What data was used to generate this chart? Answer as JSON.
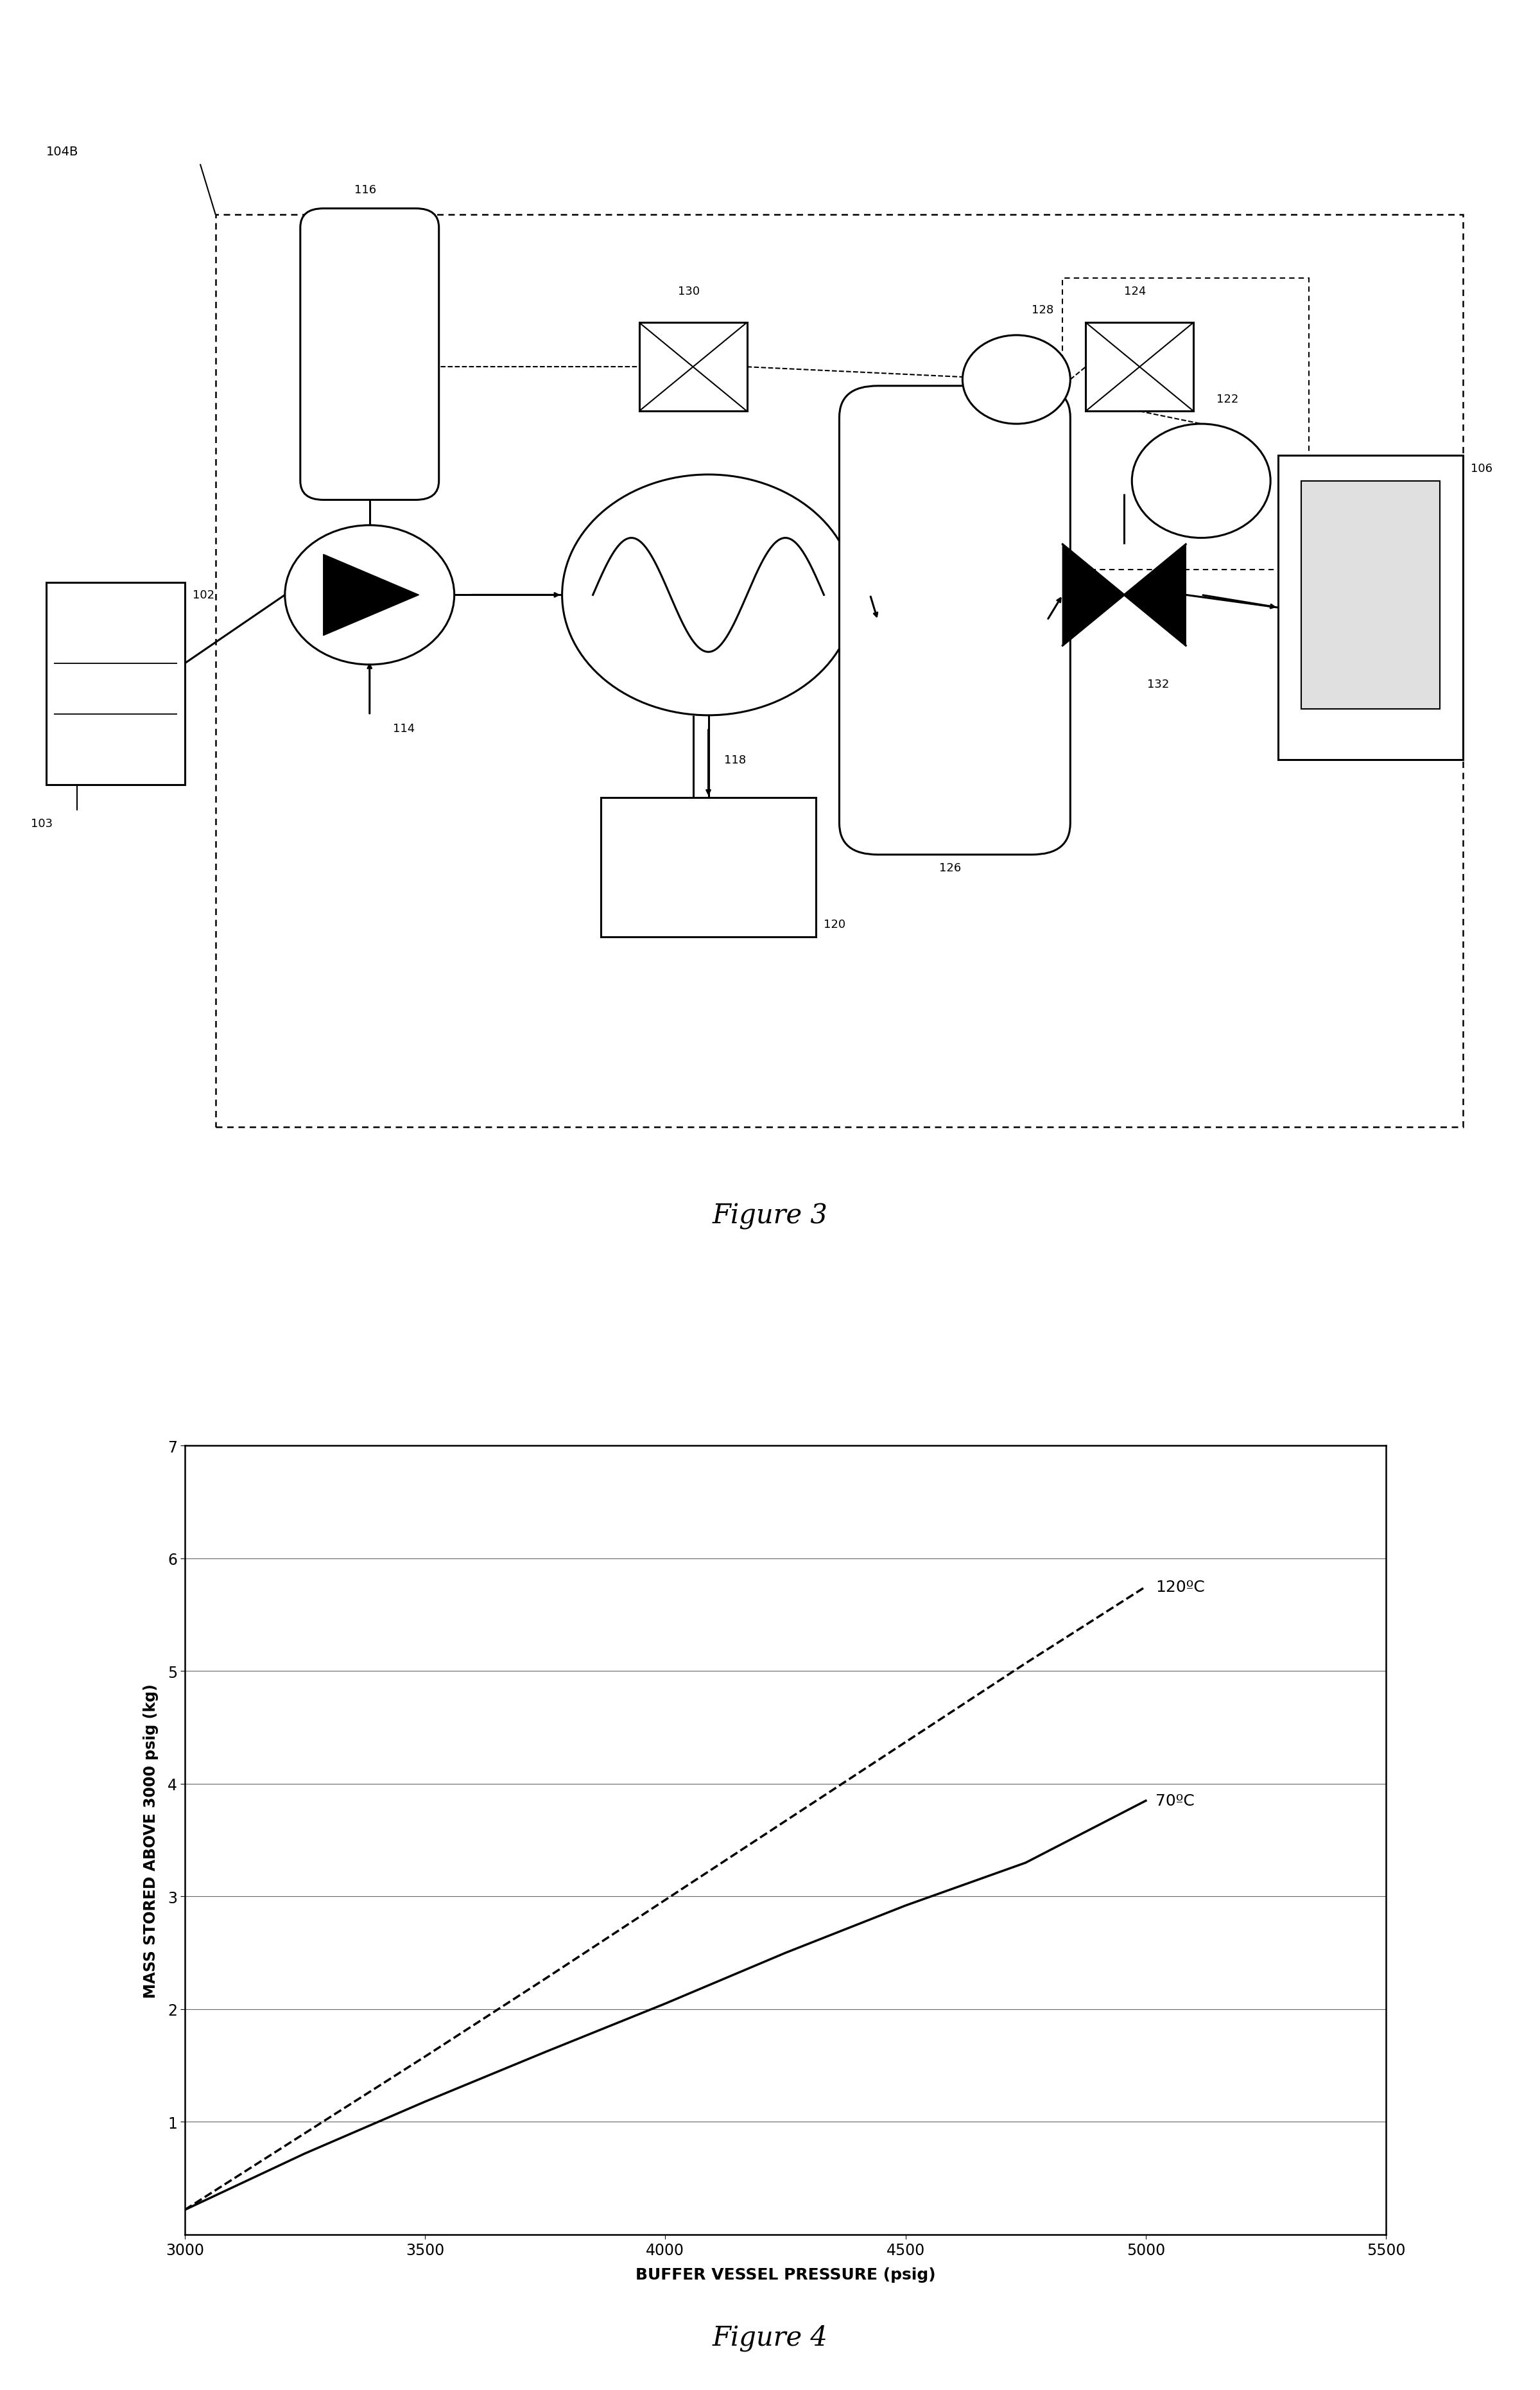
{
  "fig3_title": "Figure 3",
  "fig4_title": "Figure 4",
  "fig4_xlabel": "BUFFER VESSEL PRESSURE (psig)",
  "fig4_ylabel": "MASS STORED ABOVE 3000 psig (kg)",
  "fig4_xlim": [
    3000,
    5500
  ],
  "fig4_ylim": [
    0,
    7
  ],
  "fig4_xticks": [
    3000,
    3500,
    4000,
    4500,
    5000,
    5500
  ],
  "fig4_yticks": [
    1,
    2,
    3,
    4,
    5,
    6,
    7
  ],
  "x_pts_120": [
    3000,
    3250,
    3500,
    3750,
    4000,
    4250,
    4500,
    4750,
    5000
  ],
  "y_pts_120": [
    0.22,
    0.9,
    1.58,
    2.27,
    2.97,
    3.67,
    4.37,
    5.07,
    5.75
  ],
  "x_pts_70": [
    3000,
    3250,
    3500,
    3750,
    4000,
    4250,
    4500,
    4750,
    5000
  ],
  "y_pts_70": [
    0.22,
    0.72,
    1.18,
    1.62,
    2.05,
    2.5,
    2.92,
    3.3,
    3.85
  ],
  "label_120": "120ºC",
  "label_70": "70ºC",
  "bg_color": "#ffffff"
}
